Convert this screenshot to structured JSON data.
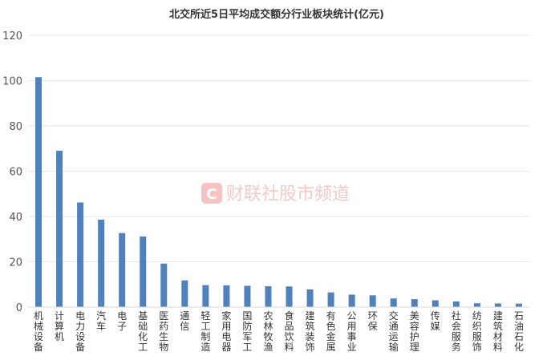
{
  "chart_data": {
    "type": "bar",
    "title": "北交所近5日平均成交额分行业板块统计(亿元)",
    "xlabel": "",
    "ylabel": "",
    "ylim": [
      0,
      120
    ],
    "yticks": [
      0,
      20,
      40,
      60,
      80,
      100,
      120
    ],
    "grid": true,
    "legend": "none",
    "bar_color": "#4f81bd",
    "categories": [
      "机械设备",
      "计算机",
      "电力设备",
      "汽车",
      "电子",
      "基础化工",
      "医药生物",
      "通信",
      "轻工制造",
      "家用电器",
      "国防军工",
      "农林牧渔",
      "食品饮料",
      "建筑装饰",
      "有色金属",
      "公用事业",
      "环保",
      "交通运输",
      "美容护理",
      "传媒",
      "社会服务",
      "纺织服饰",
      "建筑材料",
      "石油石化"
    ],
    "values": [
      101.5,
      69,
      46.2,
      38.6,
      32.7,
      31.2,
      19.2,
      11.8,
      9.7,
      9.6,
      9.4,
      9.2,
      9.1,
      7.8,
      6.5,
      5.5,
      5.2,
      3.8,
      3.5,
      3.0,
      2.5,
      1.7,
      1.6,
      1.5
    ]
  },
  "watermark": {
    "text": "财联社股市频道",
    "logo_letter": "C",
    "color": "#e8474c"
  }
}
